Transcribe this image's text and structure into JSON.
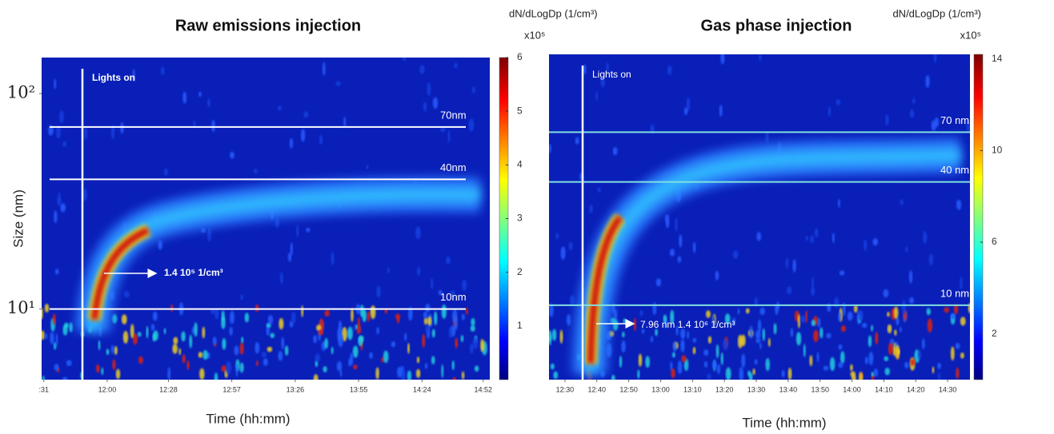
{
  "chart_data": [
    {
      "type": "heatmap",
      "title": "Raw emissions injection",
      "x_label": "Time (hh:mm)",
      "y_label": "Size (nm)",
      "xlim": [
        690,
        895
      ],
      "xticks": [
        {
          "value": 691,
          "label": ":31"
        },
        {
          "value": 720,
          "label": "12:00"
        },
        {
          "value": 748,
          "label": "12:28"
        },
        {
          "value": 777,
          "label": "12:57"
        },
        {
          "value": 806,
          "label": "13:26"
        },
        {
          "value": 835,
          "label": "13:55"
        },
        {
          "value": 864,
          "label": "14:24"
        },
        {
          "value": 892,
          "label": "14:52"
        }
      ],
      "y_scale": "log",
      "ylim": [
        4.7,
        147
      ],
      "yticks": [
        {
          "value": 10,
          "label": "10¹"
        },
        {
          "value": 100,
          "label": "10²"
        }
      ],
      "reference_lines": [
        {
          "value": 70,
          "label": "70nm"
        },
        {
          "value": 40,
          "label": "40nm"
        },
        {
          "value": 10,
          "label": "10nm"
        }
      ],
      "annotations": [
        "Lights on",
        "1.4 10⁵ 1/cm³"
      ],
      "colorbar": {
        "label": "dN/dLogDp (1/cm³)",
        "multiplier": "x10⁵",
        "lim": [
          0,
          6
        ],
        "ticks": [
          1,
          2,
          3,
          4,
          5,
          6
        ]
      }
    },
    {
      "type": "heatmap",
      "title": "Gas phase injection",
      "x_label": "Time (hh:mm)",
      "xlim": [
        745,
        877
      ],
      "xticks": [
        {
          "value": 750,
          "label": "12:30"
        },
        {
          "value": 760,
          "label": "12:40"
        },
        {
          "value": 770,
          "label": "12:50"
        },
        {
          "value": 780,
          "label": "13:00"
        },
        {
          "value": 790,
          "label": "13:10"
        },
        {
          "value": 800,
          "label": "13:20"
        },
        {
          "value": 810,
          "label": "13:30"
        },
        {
          "value": 820,
          "label": "13:40"
        },
        {
          "value": 830,
          "label": "13:50"
        },
        {
          "value": 840,
          "label": "14:00"
        },
        {
          "value": 850,
          "label": "14:10"
        },
        {
          "value": 860,
          "label": "14:20"
        },
        {
          "value": 870,
          "label": "14:30"
        }
      ],
      "y_scale": "log",
      "ylim": [
        4.33,
        168
      ],
      "reference_lines": [
        {
          "value": 70,
          "label": "70 nm"
        },
        {
          "value": 40,
          "label": "40 nm"
        },
        {
          "value": 10,
          "label": "10 nm"
        }
      ],
      "annotations": [
        "Lights on",
        "7.96 nm 1.4 10⁶ 1/cm³"
      ],
      "colorbar": {
        "label": "dN/dLogDp (1/cm³)",
        "multiplier": "x10⁵",
        "lim": [
          0,
          14.2
        ],
        "ticks": [
          2,
          6,
          10,
          14
        ]
      }
    }
  ]
}
